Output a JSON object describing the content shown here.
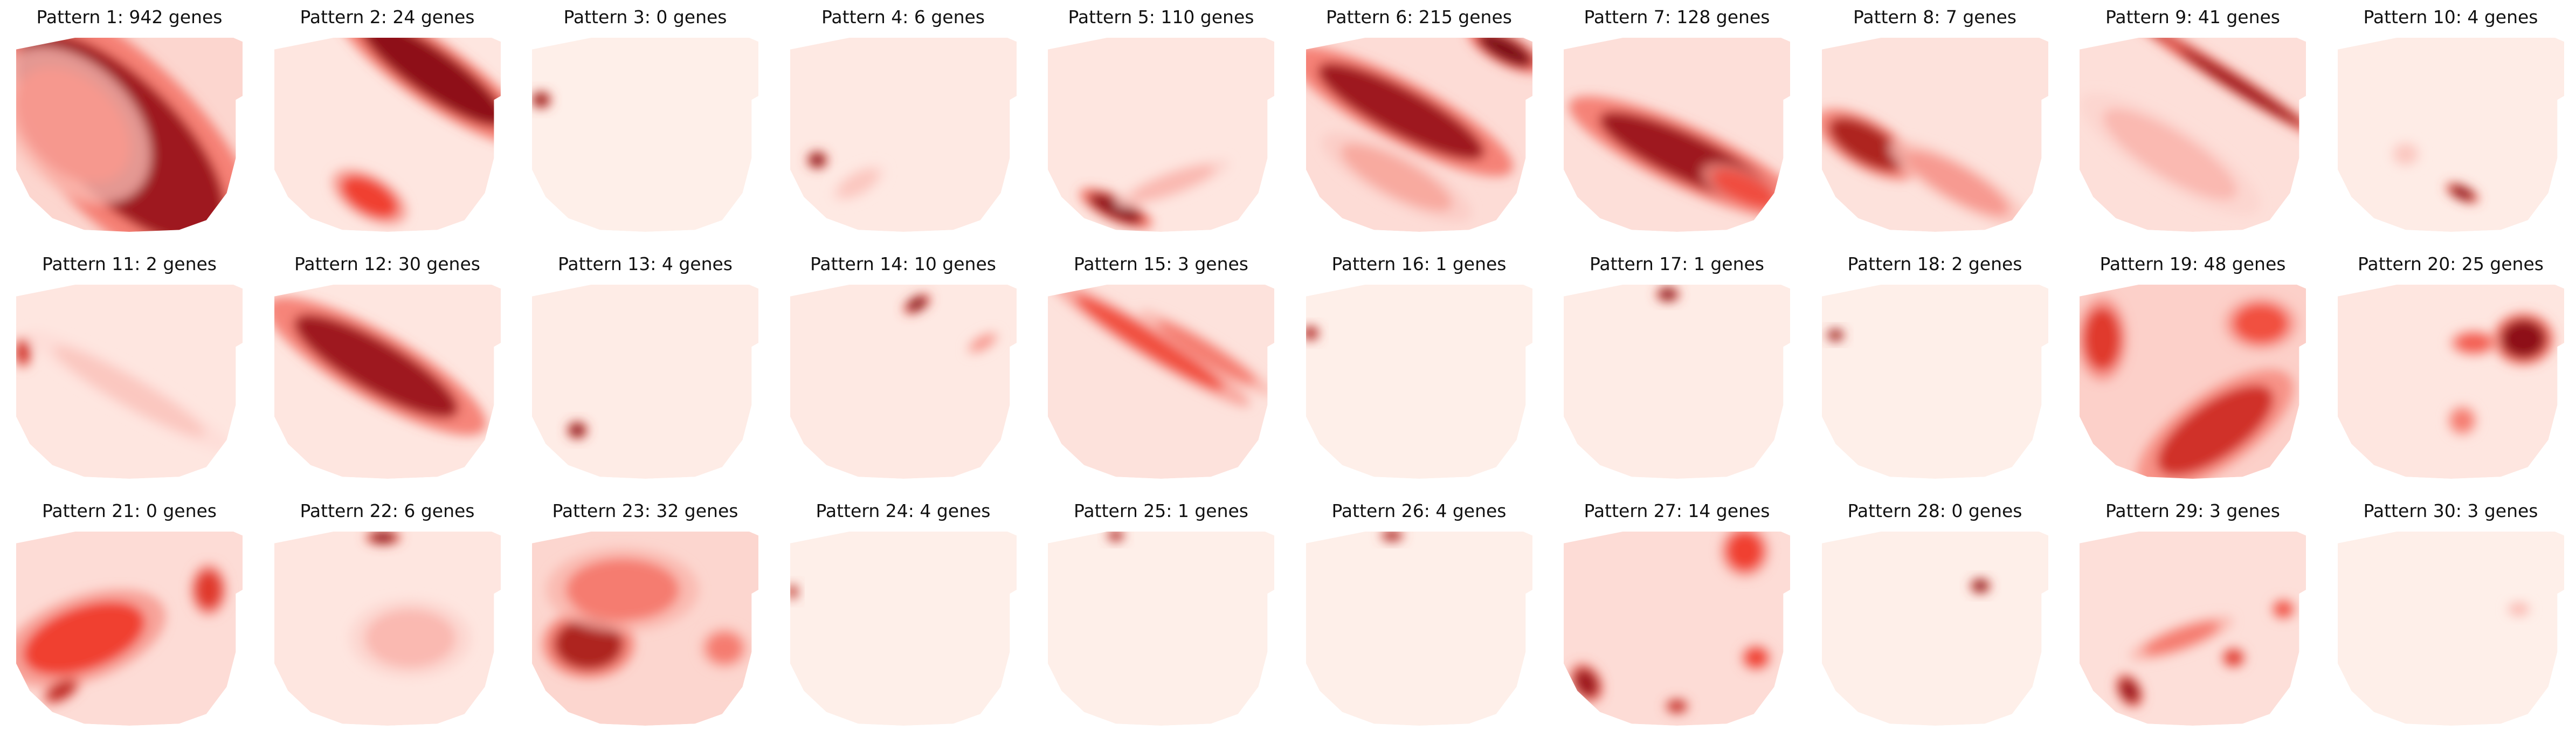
{
  "chart_data": {
    "type": "heatmap",
    "layout": {
      "rows": 3,
      "cols": 10
    },
    "colormap": {
      "name": "Reds",
      "low": "#fff5f0",
      "mid": "#ef3b2c",
      "high": "#67000d"
    },
    "value_range": [
      0,
      1
    ],
    "panels": [
      {
        "title": "Pattern 1: 942 genes",
        "base": 0.1,
        "blobs": [
          {
            "x": 0.46,
            "y": 0.52,
            "rx": 0.26,
            "ry": 0.7,
            "rot": -45,
            "v": 0.85
          },
          {
            "x": 0.25,
            "y": 0.45,
            "rx": 0.2,
            "ry": 0.35,
            "rot": -45,
            "v": 0.3
          }
        ]
      },
      {
        "title": "Pattern 2: 24 genes",
        "base": 0.05,
        "blobs": [
          {
            "x": 0.7,
            "y": 0.18,
            "rx": 0.1,
            "ry": 0.45,
            "rot": -55,
            "v": 0.9
          },
          {
            "x": 0.42,
            "y": 0.82,
            "rx": 0.07,
            "ry": 0.16,
            "rot": -60,
            "v": 0.6
          }
        ]
      },
      {
        "title": "Pattern 3: 0 genes",
        "base": 0.02,
        "blobs": [
          {
            "x": 0.04,
            "y": 0.32,
            "rx": 0.035,
            "ry": 0.035,
            "rot": 0,
            "v": 0.9
          }
        ]
      },
      {
        "title": "Pattern 4: 6 genes",
        "base": 0.04,
        "blobs": [
          {
            "x": 0.12,
            "y": 0.63,
            "rx": 0.035,
            "ry": 0.035,
            "rot": 0,
            "v": 0.95
          },
          {
            "x": 0.3,
            "y": 0.75,
            "rx": 0.1,
            "ry": 0.05,
            "rot": -30,
            "v": 0.15
          }
        ]
      },
      {
        "title": "Pattern 5: 110 genes",
        "base": 0.05,
        "blobs": [
          {
            "x": 0.3,
            "y": 0.88,
            "rx": 0.13,
            "ry": 0.05,
            "rot": 25,
            "v": 0.9
          },
          {
            "x": 0.55,
            "y": 0.75,
            "rx": 0.2,
            "ry": 0.05,
            "rot": -20,
            "v": 0.2
          }
        ]
      },
      {
        "title": "Pattern 6: 215 genes",
        "base": 0.08,
        "blobs": [
          {
            "x": 0.42,
            "y": 0.38,
            "rx": 0.1,
            "ry": 0.48,
            "rot": -62,
            "v": 0.85
          },
          {
            "x": 0.88,
            "y": 0.06,
            "rx": 0.05,
            "ry": 0.16,
            "rot": -62,
            "v": 0.95
          },
          {
            "x": 0.4,
            "y": 0.72,
            "rx": 0.08,
            "ry": 0.32,
            "rot": -62,
            "v": 0.25
          }
        ]
      },
      {
        "title": "Pattern 7: 128 genes",
        "base": 0.07,
        "blobs": [
          {
            "x": 0.55,
            "y": 0.62,
            "rx": 0.1,
            "ry": 0.5,
            "rot": -65,
            "v": 0.85
          },
          {
            "x": 0.8,
            "y": 0.78,
            "rx": 0.06,
            "ry": 0.18,
            "rot": -65,
            "v": 0.55
          }
        ]
      },
      {
        "title": "Pattern 8: 7 genes",
        "base": 0.06,
        "blobs": [
          {
            "x": 0.2,
            "y": 0.55,
            "rx": 0.08,
            "ry": 0.22,
            "rot": -60,
            "v": 0.8
          },
          {
            "x": 0.6,
            "y": 0.75,
            "rx": 0.07,
            "ry": 0.3,
            "rot": -60,
            "v": 0.3
          }
        ]
      },
      {
        "title": "Pattern 9: 41 genes",
        "base": 0.07,
        "blobs": [
          {
            "x": 0.62,
            "y": 0.18,
            "rx": 0.03,
            "ry": 0.42,
            "rot": -58,
            "v": 0.9
          },
          {
            "x": 0.72,
            "y": 0.26,
            "rx": 0.03,
            "ry": 0.38,
            "rot": -58,
            "v": 0.85
          },
          {
            "x": 0.4,
            "y": 0.6,
            "rx": 0.1,
            "ry": 0.4,
            "rot": -58,
            "v": 0.2
          }
        ]
      },
      {
        "title": "Pattern 10: 4 genes",
        "base": 0.03,
        "blobs": [
          {
            "x": 0.55,
            "y": 0.8,
            "rx": 0.06,
            "ry": 0.03,
            "rot": 25,
            "v": 0.9
          },
          {
            "x": 0.3,
            "y": 0.6,
            "rx": 0.05,
            "ry": 0.05,
            "rot": 0,
            "v": 0.15
          }
        ]
      },
      {
        "title": "Pattern 11: 2 genes",
        "base": 0.05,
        "blobs": [
          {
            "x": 0.03,
            "y": 0.35,
            "rx": 0.03,
            "ry": 0.06,
            "rot": 0,
            "v": 0.7
          },
          {
            "x": 0.5,
            "y": 0.55,
            "rx": 0.06,
            "ry": 0.45,
            "rot": -60,
            "v": 0.15
          }
        ]
      },
      {
        "title": "Pattern 12: 30 genes",
        "base": 0.05,
        "blobs": [
          {
            "x": 0.45,
            "y": 0.42,
            "rx": 0.11,
            "ry": 0.48,
            "rot": -60,
            "v": 0.85
          }
        ]
      },
      {
        "title": "Pattern 13: 4 genes",
        "base": 0.03,
        "blobs": [
          {
            "x": 0.2,
            "y": 0.75,
            "rx": 0.035,
            "ry": 0.035,
            "rot": 0,
            "v": 0.95
          }
        ]
      },
      {
        "title": "Pattern 14: 10 genes",
        "base": 0.04,
        "blobs": [
          {
            "x": 0.56,
            "y": 0.1,
            "rx": 0.05,
            "ry": 0.03,
            "rot": -30,
            "v": 0.95
          },
          {
            "x": 0.85,
            "y": 0.3,
            "rx": 0.06,
            "ry": 0.03,
            "rot": -30,
            "v": 0.3
          }
        ]
      },
      {
        "title": "Pattern 15: 3 genes",
        "base": 0.06,
        "blobs": [
          {
            "x": 0.45,
            "y": 0.3,
            "rx": 0.05,
            "ry": 0.45,
            "rot": -58,
            "v": 0.55
          },
          {
            "x": 0.7,
            "y": 0.35,
            "rx": 0.04,
            "ry": 0.3,
            "rot": -58,
            "v": 0.4
          }
        ]
      },
      {
        "title": "Pattern 16: 1 genes",
        "base": 0.02,
        "blobs": [
          {
            "x": 0.02,
            "y": 0.25,
            "rx": 0.03,
            "ry": 0.03,
            "rot": 0,
            "v": 0.85
          }
        ]
      },
      {
        "title": "Pattern 17: 1 genes",
        "base": 0.03,
        "blobs": [
          {
            "x": 0.46,
            "y": 0.05,
            "rx": 0.04,
            "ry": 0.03,
            "rot": 0,
            "v": 0.95
          }
        ]
      },
      {
        "title": "Pattern 18: 2 genes",
        "base": 0.02,
        "blobs": [
          {
            "x": 0.06,
            "y": 0.26,
            "rx": 0.03,
            "ry": 0.025,
            "rot": 0,
            "v": 0.95
          }
        ]
      },
      {
        "title": "Pattern 19: 48 genes",
        "base": 0.12,
        "blobs": [
          {
            "x": 0.6,
            "y": 0.75,
            "rx": 0.3,
            "ry": 0.14,
            "rot": -35,
            "v": 0.7
          },
          {
            "x": 0.1,
            "y": 0.28,
            "rx": 0.08,
            "ry": 0.16,
            "rot": 0,
            "v": 0.65
          },
          {
            "x": 0.8,
            "y": 0.2,
            "rx": 0.12,
            "ry": 0.1,
            "rot": 0,
            "v": 0.55
          }
        ]
      },
      {
        "title": "Pattern 20: 25 genes",
        "base": 0.05,
        "blobs": [
          {
            "x": 0.82,
            "y": 0.28,
            "rx": 0.1,
            "ry": 0.1,
            "rot": 0,
            "v": 0.9
          },
          {
            "x": 0.6,
            "y": 0.3,
            "rx": 0.08,
            "ry": 0.05,
            "rot": 0,
            "v": 0.5
          },
          {
            "x": 0.55,
            "y": 0.7,
            "rx": 0.05,
            "ry": 0.06,
            "rot": 0,
            "v": 0.4
          }
        ]
      },
      {
        "title": "Pattern 21: 0 genes",
        "base": 0.08,
        "blobs": [
          {
            "x": 0.3,
            "y": 0.55,
            "rx": 0.28,
            "ry": 0.16,
            "rot": -20,
            "v": 0.6
          },
          {
            "x": 0.85,
            "y": 0.3,
            "rx": 0.06,
            "ry": 0.1,
            "rot": 0,
            "v": 0.65
          },
          {
            "x": 0.2,
            "y": 0.82,
            "rx": 0.07,
            "ry": 0.04,
            "rot": -30,
            "v": 0.75
          }
        ]
      },
      {
        "title": "Pattern 22: 6 genes",
        "base": 0.05,
        "blobs": [
          {
            "x": 0.48,
            "y": 0.03,
            "rx": 0.06,
            "ry": 0.03,
            "rot": 0,
            "v": 0.9
          },
          {
            "x": 0.6,
            "y": 0.55,
            "rx": 0.2,
            "ry": 0.15,
            "rot": 0,
            "v": 0.2
          }
        ]
      },
      {
        "title": "Pattern 23: 32 genes",
        "base": 0.1,
        "blobs": [
          {
            "x": 0.25,
            "y": 0.58,
            "rx": 0.15,
            "ry": 0.13,
            "rot": 0,
            "v": 0.8
          },
          {
            "x": 0.4,
            "y": 0.3,
            "rx": 0.25,
            "ry": 0.16,
            "rot": 0,
            "v": 0.4
          },
          {
            "x": 0.85,
            "y": 0.6,
            "rx": 0.08,
            "ry": 0.08,
            "rot": 0,
            "v": 0.4
          }
        ]
      },
      {
        "title": "Pattern 24: 4 genes",
        "base": 0.02,
        "blobs": [
          {
            "x": 0.01,
            "y": 0.31,
            "rx": 0.02,
            "ry": 0.03,
            "rot": 0,
            "v": 0.8
          }
        ]
      },
      {
        "title": "Pattern 25: 1 genes",
        "base": 0.02,
        "blobs": [
          {
            "x": 0.3,
            "y": 0.02,
            "rx": 0.03,
            "ry": 0.025,
            "rot": 0,
            "v": 0.85
          }
        ]
      },
      {
        "title": "Pattern 26: 4 genes",
        "base": 0.02,
        "blobs": [
          {
            "x": 0.38,
            "y": 0.02,
            "rx": 0.04,
            "ry": 0.025,
            "rot": 0,
            "v": 0.85
          }
        ]
      },
      {
        "title": "Pattern 27: 14 genes",
        "base": 0.08,
        "blobs": [
          {
            "x": 0.1,
            "y": 0.78,
            "rx": 0.05,
            "ry": 0.08,
            "rot": -30,
            "v": 0.85
          },
          {
            "x": 0.5,
            "y": 0.9,
            "rx": 0.04,
            "ry": 0.03,
            "rot": 0,
            "v": 0.75
          },
          {
            "x": 0.8,
            "y": 0.1,
            "rx": 0.08,
            "ry": 0.1,
            "rot": 0,
            "v": 0.6
          },
          {
            "x": 0.85,
            "y": 0.65,
            "rx": 0.05,
            "ry": 0.05,
            "rot": 0,
            "v": 0.6
          }
        ]
      },
      {
        "title": "Pattern 28: 0 genes",
        "base": 0.02,
        "blobs": [
          {
            "x": 0.7,
            "y": 0.28,
            "rx": 0.035,
            "ry": 0.03,
            "rot": 0,
            "v": 0.95
          }
        ]
      },
      {
        "title": "Pattern 29: 3 genes",
        "base": 0.07,
        "blobs": [
          {
            "x": 0.22,
            "y": 0.82,
            "rx": 0.04,
            "ry": 0.07,
            "rot": -30,
            "v": 0.85
          },
          {
            "x": 0.45,
            "y": 0.55,
            "rx": 0.18,
            "ry": 0.05,
            "rot": -20,
            "v": 0.4
          },
          {
            "x": 0.68,
            "y": 0.65,
            "rx": 0.04,
            "ry": 0.04,
            "rot": 0,
            "v": 0.65
          },
          {
            "x": 0.9,
            "y": 0.4,
            "rx": 0.04,
            "ry": 0.04,
            "rot": 0,
            "v": 0.55
          }
        ]
      },
      {
        "title": "Pattern 30: 3 genes",
        "base": 0.02,
        "blobs": [
          {
            "x": 0.8,
            "y": 0.4,
            "rx": 0.04,
            "ry": 0.03,
            "rot": 0,
            "v": 0.2
          }
        ]
      }
    ]
  }
}
